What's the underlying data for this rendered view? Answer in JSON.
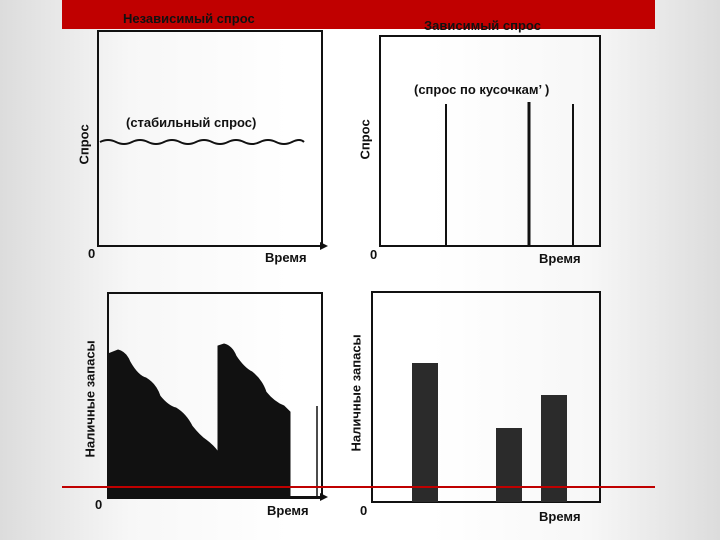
{
  "header": {
    "bar_color": "#c00000"
  },
  "panels": {
    "top_left": {
      "title": "Независимый спрос",
      "ylabel": "Спрос",
      "xlabel": "Время",
      "origin": "0",
      "annotation": "(стабильный спрос)"
    },
    "top_right": {
      "title": "Зависимый спрос",
      "ylabel": "Спрос",
      "xlabel": "Время",
      "origin": "0",
      "annotation": "(спрос   по кусочкам’ )"
    },
    "bottom_left": {
      "ylabel": "Наличные запасы",
      "xlabel": "Время",
      "origin": "0"
    },
    "bottom_right": {
      "ylabel": "Наличные запасы",
      "xlabel": "Время",
      "origin": "0"
    }
  },
  "colors": {
    "accent_line": "#c00000",
    "ink": "#111111",
    "bar_fill": "#2b2b2b"
  }
}
